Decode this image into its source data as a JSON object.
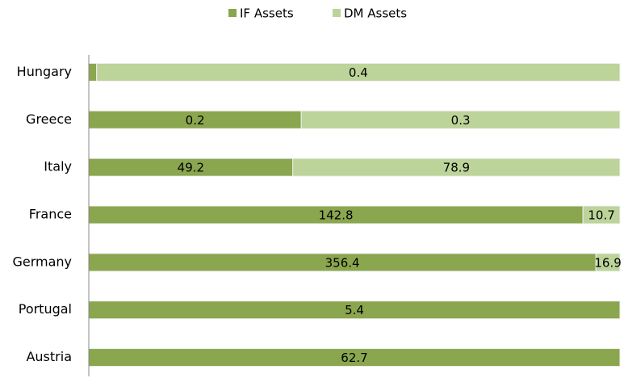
{
  "chart_data": {
    "type": "stacked_bar_100",
    "categories": [
      "Hungary",
      "Greece",
      "Italy",
      "France",
      "Germany",
      "Portugal",
      "Austria"
    ],
    "series": [
      {
        "name": "IF Assets",
        "color": "#8aa64e",
        "values": [
          0.006,
          0.2,
          49.2,
          142.8,
          356.4,
          5.4,
          62.7
        ]
      },
      {
        "name": "DM Assets",
        "color": "#bcd39a",
        "values": [
          0.4,
          0.3,
          78.9,
          10.7,
          16.9,
          0,
          0
        ]
      }
    ],
    "legend": "top"
  }
}
